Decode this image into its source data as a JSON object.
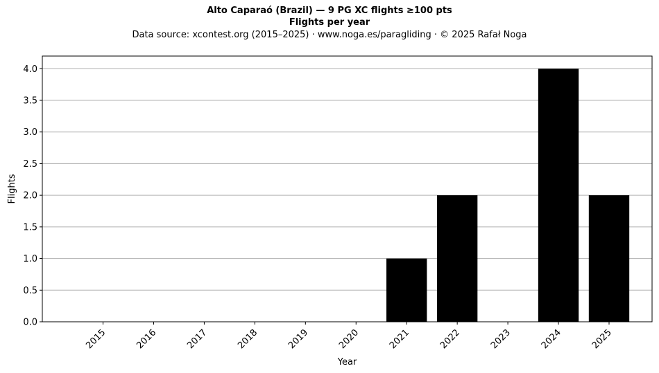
{
  "chart_data": {
    "type": "bar",
    "title": "Alto Caparaó (Brazil)  —  9 PG XC flights ≥100 pts",
    "subtitle": "Flights per year",
    "source_note": "Data source: xcontest.org (2015–2025)  ·  www.noga.es/paragliding  ·  © 2025 Rafał Noga",
    "xlabel": "Year",
    "ylabel": "Flights",
    "categories": [
      "2015",
      "2016",
      "2017",
      "2018",
      "2019",
      "2020",
      "2021",
      "2022",
      "2023",
      "2024",
      "2025"
    ],
    "values": [
      0,
      0,
      0,
      0,
      0,
      0,
      1,
      2,
      0,
      4,
      2
    ],
    "ylim": [
      0,
      4.2
    ],
    "yticks": [
      "0.0",
      "0.5",
      "1.0",
      "1.5",
      "2.0",
      "2.5",
      "3.0",
      "3.5",
      "4.0"
    ],
    "grid": "horizontal",
    "bar_color": "#000000",
    "grid_color": "#b0b0b0"
  }
}
